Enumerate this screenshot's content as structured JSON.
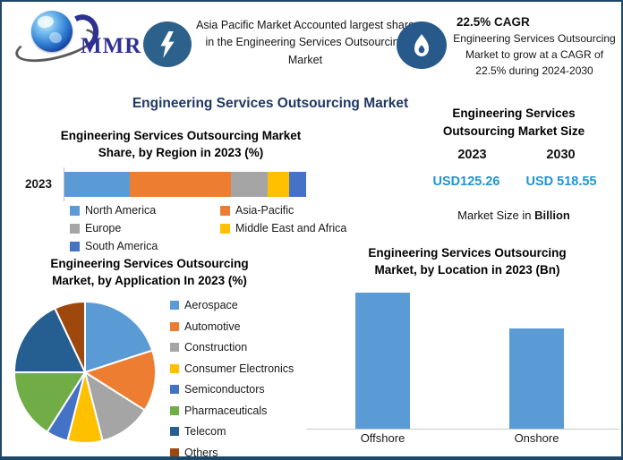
{
  "header": {
    "logo": {
      "text": "MMR"
    },
    "highlight_left": {
      "icon": "lightning-bolt",
      "text": "Asia Pacific Market Accounted largest share in the Engineering Services Outsourcing Market"
    },
    "highlight_right": {
      "icon": "flame",
      "title": "22.5% CAGR",
      "text": "Engineering Services Outsourcing Market to grow at a CAGR of 22.5% during 2024-2030"
    }
  },
  "main_title": "Engineering Services Outsourcing Market",
  "market_size": {
    "title": "Engineering Services Outsourcing Market Size",
    "years": [
      "2023",
      "2030"
    ],
    "values": [
      "USD125.26",
      "USD 518.55"
    ],
    "note_regular": "Market Size in ",
    "note_bold": "Billion",
    "value_color": "#1F95D4"
  },
  "colors": {
    "frame_border": "#1E4868",
    "icon_circle_left": "#2C618B",
    "icon_circle_right": "#27598B",
    "main_title": "#1F3864",
    "axis_gray": "#C9C9C9"
  },
  "chart_data": [
    {
      "id": "region_share",
      "type": "bar",
      "subtype": "horizontal-stacked",
      "title": "Engineering Services Outsourcing Market Share, by Region in 2023 (%)",
      "categories": [
        "2023"
      ],
      "series": [
        {
          "name": "North America",
          "value": 27,
          "color": "#5B9BD5"
        },
        {
          "name": "Asia-Pacific",
          "value": 42,
          "color": "#ED7D31"
        },
        {
          "name": "Europe",
          "value": 15,
          "color": "#A5A5A5"
        },
        {
          "name": "Middle East and Africa",
          "value": 9,
          "color": "#FFC000"
        },
        {
          "name": "South America",
          "value": 7,
          "color": "#4472C4"
        }
      ],
      "xlim": [
        0,
        100
      ],
      "legend_position": "bottom"
    },
    {
      "id": "application_share",
      "type": "pie",
      "title": "Engineering Services Outsourcing Market, by Application In 2023 (%)",
      "start_angle_deg": 0,
      "direction": "clockwise",
      "slices": [
        {
          "name": "Aerospace",
          "value": 20,
          "color": "#5B9BD5"
        },
        {
          "name": "Automotive",
          "value": 14,
          "color": "#ED7D31"
        },
        {
          "name": "Construction",
          "value": 12,
          "color": "#A5A5A5"
        },
        {
          "name": "Consumer Electronics",
          "value": 8,
          "color": "#FFC000"
        },
        {
          "name": "Semiconductors",
          "value": 5,
          "color": "#4472C4"
        },
        {
          "name": "Pharmaceuticals",
          "value": 16,
          "color": "#70AD47"
        },
        {
          "name": "Telecom",
          "value": 18,
          "color": "#255E91"
        },
        {
          "name": "Others",
          "value": 7,
          "color": "#9E480E"
        }
      ],
      "legend_position": "right"
    },
    {
      "id": "location",
      "type": "bar",
      "title": "Engineering Services Outsourcing Market, by Location in 2023 (Bn)",
      "categories": [
        "Offshore",
        "Onshore"
      ],
      "values": [
        72,
        53
      ],
      "bar_color": "#5B9BD5",
      "ylim": [
        0,
        80
      ],
      "grid": false
    }
  ]
}
